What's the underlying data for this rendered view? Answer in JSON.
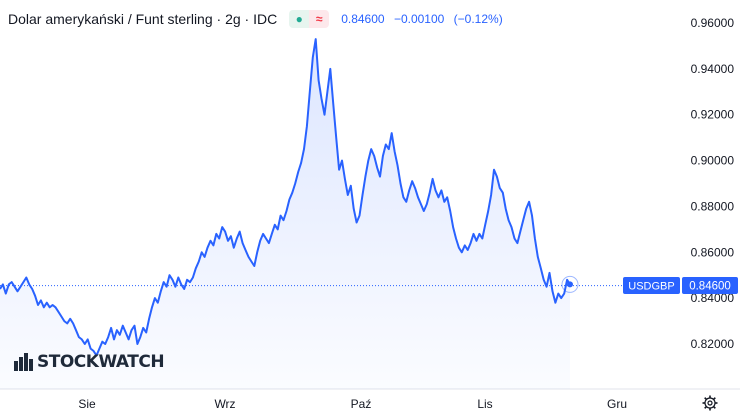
{
  "header": {
    "title": "Dolar amerykański / Funt sterling · 2g · IDC",
    "badge_green": "●",
    "badge_red": "≈",
    "price": "0.84600",
    "change": "−0.00100",
    "change_pct": "(−0.12%)"
  },
  "watermark": "STOCKWATCH",
  "price_label": {
    "symbol": "USDGBP",
    "value": "0.84600"
  },
  "chart_data": {
    "type": "area",
    "symbol": "USDGBP",
    "x_ticks": [
      "Sie",
      "Wrz",
      "Paź",
      "Lis",
      "Gru"
    ],
    "y_ticks": [
      "0.96000",
      "0.94000",
      "0.92000",
      "0.90000",
      "0.88000",
      "0.86000",
      "0.84000",
      "0.82000"
    ],
    "ylim": [
      0.808,
      0.967
    ],
    "current_value": 0.846,
    "line_color": "#2962ff",
    "series": [
      {
        "values": [
          0.844,
          0.846,
          0.842,
          0.846,
          0.847,
          0.845,
          0.843,
          0.845,
          0.847,
          0.849,
          0.846,
          0.844,
          0.841,
          0.837,
          0.839,
          0.836,
          0.838,
          0.836,
          0.837,
          0.836,
          0.834,
          0.832,
          0.83,
          0.829,
          0.831,
          0.829,
          0.826,
          0.823,
          0.822,
          0.82,
          0.822,
          0.818,
          0.817,
          0.815,
          0.818,
          0.821,
          0.82,
          0.823,
          0.827,
          0.822,
          0.826,
          0.824,
          0.828,
          0.825,
          0.822,
          0.826,
          0.828,
          0.82,
          0.823,
          0.827,
          0.825,
          0.831,
          0.836,
          0.84,
          0.838,
          0.843,
          0.847,
          0.845,
          0.85,
          0.848,
          0.845,
          0.849,
          0.846,
          0.844,
          0.848,
          0.847,
          0.849,
          0.853,
          0.856,
          0.86,
          0.858,
          0.862,
          0.865,
          0.863,
          0.868,
          0.866,
          0.871,
          0.869,
          0.865,
          0.867,
          0.862,
          0.866,
          0.869,
          0.864,
          0.861,
          0.858,
          0.856,
          0.854,
          0.86,
          0.865,
          0.868,
          0.866,
          0.864,
          0.868,
          0.872,
          0.87,
          0.876,
          0.874,
          0.878,
          0.883,
          0.886,
          0.89,
          0.895,
          0.899,
          0.905,
          0.915,
          0.93,
          0.945,
          0.953,
          0.935,
          0.927,
          0.92,
          0.93,
          0.94,
          0.925,
          0.91,
          0.896,
          0.9,
          0.892,
          0.885,
          0.889,
          0.879,
          0.873,
          0.876,
          0.885,
          0.893,
          0.9,
          0.905,
          0.902,
          0.897,
          0.893,
          0.902,
          0.907,
          0.905,
          0.912,
          0.904,
          0.898,
          0.89,
          0.884,
          0.882,
          0.887,
          0.891,
          0.888,
          0.884,
          0.881,
          0.878,
          0.881,
          0.886,
          0.892,
          0.887,
          0.884,
          0.887,
          0.882,
          0.884,
          0.878,
          0.871,
          0.866,
          0.862,
          0.86,
          0.863,
          0.861,
          0.864,
          0.868,
          0.865,
          0.868,
          0.866,
          0.872,
          0.878,
          0.885,
          0.896,
          0.893,
          0.888,
          0.886,
          0.879,
          0.874,
          0.871,
          0.866,
          0.864,
          0.869,
          0.874,
          0.879,
          0.882,
          0.876,
          0.866,
          0.858,
          0.853,
          0.848,
          0.845,
          0.851,
          0.843,
          0.838,
          0.842,
          0.84,
          0.842,
          0.848,
          0.846
        ]
      }
    ]
  }
}
